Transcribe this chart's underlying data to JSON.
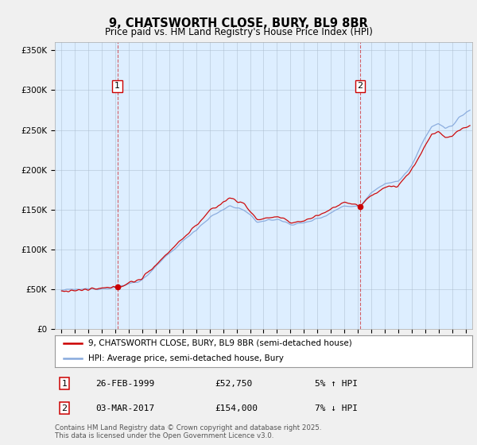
{
  "title": "9, CHATSWORTH CLOSE, BURY, BL9 8BR",
  "subtitle": "Price paid vs. HM Land Registry's House Price Index (HPI)",
  "ylim": [
    0,
    360000
  ],
  "sale1_year": 1999.15,
  "sale1_price": 52750,
  "sale2_year": 2017.18,
  "sale2_price": 154000,
  "sale1_date": "26-FEB-1999",
  "sale1_hpi_pct": "5% ↑ HPI",
  "sale2_date": "03-MAR-2017",
  "sale2_hpi_pct": "7% ↓ HPI",
  "legend_line1": "9, CHATSWORTH CLOSE, BURY, BL9 8BR (semi-detached house)",
  "legend_line2": "HPI: Average price, semi-detached house, Bury",
  "footnote": "Contains HM Land Registry data © Crown copyright and database right 2025.\nThis data is licensed under the Open Government Licence v3.0.",
  "line_color_red": "#cc0000",
  "line_color_blue": "#88aadd",
  "marker_color_red": "#cc0000",
  "background_color": "#f0f0f0",
  "plot_bg_color": "#ddeeff",
  "grid_color": "#aabbcc"
}
